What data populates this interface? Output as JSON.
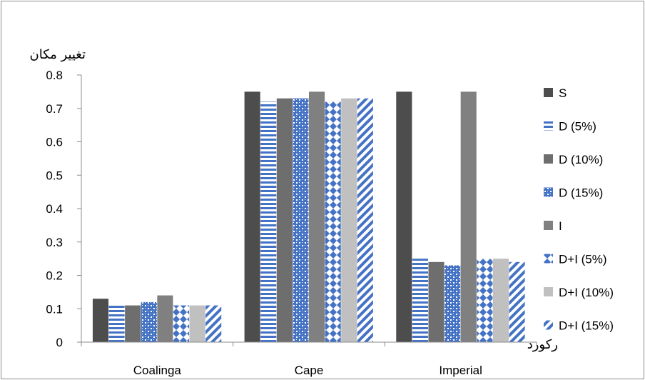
{
  "chart_data": {
    "type": "bar",
    "ylabel": "تغییر مکان",
    "xlabel": "رکورد",
    "ylim": [
      0,
      0.8
    ],
    "yticks": [
      "0",
      "0.1",
      "0.2",
      "0.3",
      "0.4",
      "0.5",
      "0.6",
      "0.7",
      "0.8"
    ],
    "grid": false,
    "legend_position": "right",
    "categories": [
      "Coalinga",
      "Cape",
      "Imperial"
    ],
    "series": [
      {
        "name": "S",
        "values": [
          0.13,
          0.75,
          0.75
        ],
        "color": "#4d4d4d",
        "pattern": "solid"
      },
      {
        "name": "D (5%)",
        "values": [
          0.11,
          0.72,
          0.25
        ],
        "color": "#4472c4",
        "pattern": "horizontal-stripes"
      },
      {
        "name": "D (10%)",
        "values": [
          0.11,
          0.73,
          0.24
        ],
        "color": "#6e6e6e",
        "pattern": "solid"
      },
      {
        "name": "D (15%)",
        "values": [
          0.12,
          0.73,
          0.23
        ],
        "color": "#4472c4",
        "pattern": "dots"
      },
      {
        "name": "I",
        "values": [
          0.14,
          0.75,
          0.75
        ],
        "color": "#808080",
        "pattern": "solid"
      },
      {
        "name": "D+I (5%)",
        "values": [
          0.11,
          0.72,
          0.25
        ],
        "color": "#4472c4",
        "pattern": "diamonds"
      },
      {
        "name": "D+I (10%)",
        "values": [
          0.11,
          0.73,
          0.25
        ],
        "color": "#c0c0c0",
        "pattern": "solid"
      },
      {
        "name": "D+I (15%)",
        "values": [
          0.11,
          0.73,
          0.24
        ],
        "color": "#4472c4",
        "pattern": "diagonal-stripes"
      }
    ]
  }
}
